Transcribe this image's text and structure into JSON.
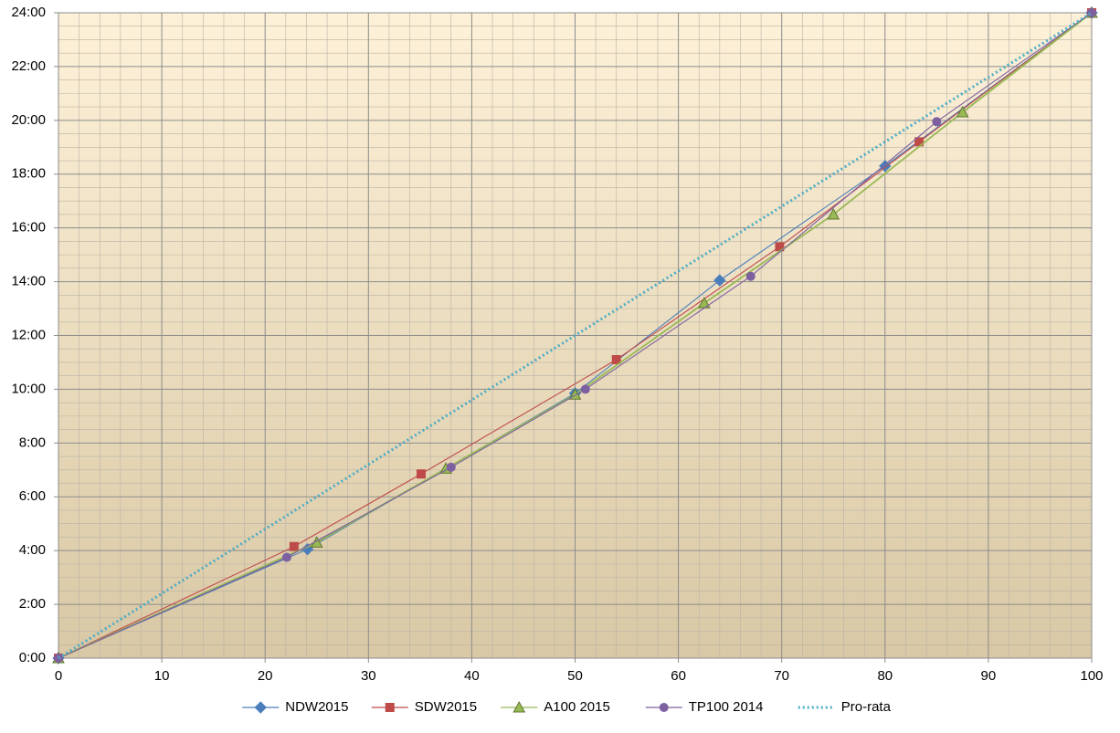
{
  "chart_data": {
    "type": "line",
    "xlim": [
      0,
      100
    ],
    "xticks": [
      0,
      10,
      20,
      30,
      40,
      50,
      60,
      70,
      80,
      90,
      100
    ],
    "ylim": [
      0,
      24
    ],
    "yticks": [
      {
        "value": 0,
        "label": "0:00"
      },
      {
        "value": 2,
        "label": "2:00"
      },
      {
        "value": 4,
        "label": "4:00"
      },
      {
        "value": 6,
        "label": "6:00"
      },
      {
        "value": 8,
        "label": "8:00"
      },
      {
        "value": 10,
        "label": "10:00"
      },
      {
        "value": 12,
        "label": "12:00"
      },
      {
        "value": 14,
        "label": "14:00"
      },
      {
        "value": 16,
        "label": "16:00"
      },
      {
        "value": 18,
        "label": "18:00"
      },
      {
        "value": 20,
        "label": "20:00"
      },
      {
        "value": 22,
        "label": "22:00"
      },
      {
        "value": 24,
        "label": "24:00"
      }
    ],
    "grid": true,
    "minor_grid": true,
    "legend": "bottom",
    "series": [
      {
        "name": "NDW2015",
        "color": "#4a7ebb",
        "marker": "diamond",
        "x": [
          0,
          24.1,
          50,
          64,
          80,
          100
        ],
        "values": [
          0,
          4.05,
          9.85,
          14.05,
          18.3,
          24
        ]
      },
      {
        "name": "SDW2015",
        "color": "#be4b48",
        "marker": "square",
        "x": [
          0,
          22.8,
          35.1,
          54,
          69.8,
          83.3,
          100
        ],
        "values": [
          0,
          4.15,
          6.85,
          11.1,
          15.3,
          19.2,
          24
        ]
      },
      {
        "name": "A100 2015",
        "color": "#98b954",
        "marker": "triangle",
        "x": [
          0,
          25,
          37.5,
          50,
          62.5,
          75,
          87.5,
          100
        ],
        "values": [
          0,
          4.3,
          7.05,
          9.8,
          13.2,
          16.5,
          20.3,
          24
        ]
      },
      {
        "name": "TP100 2014",
        "color": "#7d60a0",
        "marker": "circle",
        "x": [
          0,
          22.1,
          38,
          51,
          67,
          85,
          100
        ],
        "values": [
          0,
          3.75,
          7.1,
          10.0,
          14.2,
          19.95,
          24
        ]
      },
      {
        "name": "Pro-rata",
        "color": "#4bacc6",
        "marker": "none",
        "dash": "dotted",
        "x": [
          0,
          100
        ],
        "values": [
          0,
          24
        ]
      }
    ]
  }
}
